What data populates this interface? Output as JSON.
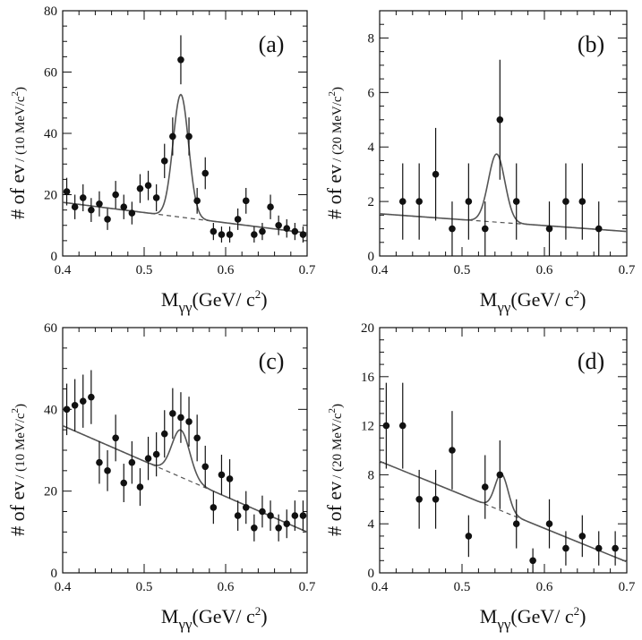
{
  "chart_data": [
    {
      "type": "scatter",
      "label": "(a)",
      "xlabel": "M",
      "xlabel_sub": "γγ",
      "xlabel_units": "(GeV/ c",
      "xlabel_exp": "2",
      "xlabel_close": ")",
      "ylabel": "# of ev",
      "ylabel_units": "/ (10 MeV/c",
      "ylabel_exp": "2",
      "ylabel_close": ")",
      "xlim": [
        0.4,
        0.7
      ],
      "ylim": [
        0,
        80
      ],
      "xticks": [
        0.4,
        0.5,
        0.6,
        0.7
      ],
      "xtick_labels": [
        "0.4",
        "0.5",
        "0.6",
        "0.7"
      ],
      "yticks": [
        0,
        20,
        40,
        60,
        80
      ],
      "ytick_labels": [
        "0",
        "20",
        "40",
        "60",
        "80"
      ],
      "x_minor_step": 0.02,
      "y_minor_step": 5,
      "points": [
        {
          "x": 0.405,
          "y": 21,
          "err": 4.5
        },
        {
          "x": 0.415,
          "y": 16,
          "err": 4.0
        },
        {
          "x": 0.425,
          "y": 19,
          "err": 4.4
        },
        {
          "x": 0.435,
          "y": 15,
          "err": 3.9
        },
        {
          "x": 0.445,
          "y": 17,
          "err": 4.1
        },
        {
          "x": 0.455,
          "y": 12,
          "err": 3.5
        },
        {
          "x": 0.465,
          "y": 20,
          "err": 4.5
        },
        {
          "x": 0.475,
          "y": 16,
          "err": 4.0
        },
        {
          "x": 0.485,
          "y": 14,
          "err": 3.7
        },
        {
          "x": 0.495,
          "y": 22,
          "err": 4.7
        },
        {
          "x": 0.505,
          "y": 23,
          "err": 4.8
        },
        {
          "x": 0.515,
          "y": 19,
          "err": 4.4
        },
        {
          "x": 0.525,
          "y": 31,
          "err": 5.6
        },
        {
          "x": 0.535,
          "y": 39,
          "err": 6.2
        },
        {
          "x": 0.545,
          "y": 64,
          "err": 8.0
        },
        {
          "x": 0.555,
          "y": 39,
          "err": 6.2
        },
        {
          "x": 0.565,
          "y": 18,
          "err": 4.2
        },
        {
          "x": 0.575,
          "y": 27,
          "err": 5.2
        },
        {
          "x": 0.585,
          "y": 8,
          "err": 2.8
        },
        {
          "x": 0.595,
          "y": 7,
          "err": 2.6
        },
        {
          "x": 0.605,
          "y": 7,
          "err": 2.6
        },
        {
          "x": 0.615,
          "y": 12,
          "err": 3.5
        },
        {
          "x": 0.625,
          "y": 18,
          "err": 4.2
        },
        {
          "x": 0.635,
          "y": 7,
          "err": 2.6
        },
        {
          "x": 0.645,
          "y": 8,
          "err": 2.8
        },
        {
          "x": 0.655,
          "y": 16,
          "err": 4.0
        },
        {
          "x": 0.665,
          "y": 10,
          "err": 3.2
        },
        {
          "x": 0.675,
          "y": 9,
          "err": 3.0
        },
        {
          "x": 0.685,
          "y": 8,
          "err": 2.8
        },
        {
          "x": 0.695,
          "y": 7,
          "err": 2.6
        }
      ],
      "background": {
        "y0": 17.5,
        "y1": 7.5
      },
      "peak": {
        "amplitude": 40,
        "mean": 0.545,
        "sigma": 0.0095
      }
    },
    {
      "type": "scatter",
      "label": "(b)",
      "xlabel": "M",
      "xlabel_sub": "γγ",
      "xlabel_units": "(GeV/ c",
      "xlabel_exp": "2",
      "xlabel_close": ")",
      "ylabel": "# of ev",
      "ylabel_units": "/ (20 MeV/c",
      "ylabel_exp": "2",
      "ylabel_close": ")",
      "xlim": [
        0.4,
        0.7
      ],
      "ylim": [
        0,
        9
      ],
      "xticks": [
        0.4,
        0.5,
        0.6,
        0.7
      ],
      "xtick_labels": [
        "0.4",
        "0.5",
        "0.6",
        "0.7"
      ],
      "yticks": [
        0,
        2,
        4,
        6,
        8
      ],
      "ytick_labels": [
        "0",
        "2",
        "4",
        "6",
        "8"
      ],
      "x_minor_step": 0.02,
      "y_minor_step": 0.5,
      "points": [
        {
          "x": 0.428,
          "y": 2,
          "err": 1.4
        },
        {
          "x": 0.448,
          "y": 2,
          "err": 1.4
        },
        {
          "x": 0.468,
          "y": 3,
          "err": 1.7
        },
        {
          "x": 0.488,
          "y": 1,
          "err": 1.0
        },
        {
          "x": 0.508,
          "y": 2,
          "err": 1.4
        },
        {
          "x": 0.528,
          "y": 1,
          "err": 1.0
        },
        {
          "x": 0.546,
          "y": 5,
          "err": 2.2
        },
        {
          "x": 0.566,
          "y": 2,
          "err": 1.4
        },
        {
          "x": 0.606,
          "y": 1,
          "err": 1.0
        },
        {
          "x": 0.626,
          "y": 2,
          "err": 1.4
        },
        {
          "x": 0.646,
          "y": 2,
          "err": 1.4
        },
        {
          "x": 0.666,
          "y": 1,
          "err": 1.0
        }
      ],
      "background": {
        "y0": 1.55,
        "y1": 0.9
      },
      "peak": {
        "amplitude": 2.5,
        "mean": 0.542,
        "sigma": 0.01
      }
    },
    {
      "type": "scatter",
      "label": "(c)",
      "xlabel": "M",
      "xlabel_sub": "γγ",
      "xlabel_units": "(GeV/ c",
      "xlabel_exp": "2",
      "xlabel_close": ")",
      "ylabel": "# of ev",
      "ylabel_units": "/ (10 MeV/c",
      "ylabel_exp": "2",
      "ylabel_close": ")",
      "xlim": [
        0.4,
        0.7
      ],
      "ylim": [
        0,
        60
      ],
      "xticks": [
        0.4,
        0.5,
        0.6,
        0.7
      ],
      "xtick_labels": [
        "0.4",
        "0.5",
        "0.6",
        "0.7"
      ],
      "yticks": [
        0,
        20,
        40,
        60
      ],
      "ytick_labels": [
        "0",
        "20",
        "40",
        "60"
      ],
      "x_minor_step": 0.02,
      "y_minor_step": 5,
      "points": [
        {
          "x": 0.405,
          "y": 40,
          "err": 6.3
        },
        {
          "x": 0.415,
          "y": 41,
          "err": 6.4
        },
        {
          "x": 0.425,
          "y": 42,
          "err": 6.5
        },
        {
          "x": 0.435,
          "y": 43,
          "err": 6.6
        },
        {
          "x": 0.445,
          "y": 27,
          "err": 5.2
        },
        {
          "x": 0.455,
          "y": 25,
          "err": 5.0
        },
        {
          "x": 0.465,
          "y": 33,
          "err": 5.7
        },
        {
          "x": 0.475,
          "y": 22,
          "err": 4.7
        },
        {
          "x": 0.485,
          "y": 27,
          "err": 5.2
        },
        {
          "x": 0.495,
          "y": 21,
          "err": 4.6
        },
        {
          "x": 0.505,
          "y": 28,
          "err": 5.3
        },
        {
          "x": 0.515,
          "y": 29,
          "err": 5.4
        },
        {
          "x": 0.525,
          "y": 34,
          "err": 5.8
        },
        {
          "x": 0.535,
          "y": 39,
          "err": 6.2
        },
        {
          "x": 0.545,
          "y": 38,
          "err": 6.2
        },
        {
          "x": 0.555,
          "y": 37,
          "err": 6.1
        },
        {
          "x": 0.565,
          "y": 33,
          "err": 5.7
        },
        {
          "x": 0.575,
          "y": 26,
          "err": 5.1
        },
        {
          "x": 0.585,
          "y": 16,
          "err": 4.0
        },
        {
          "x": 0.595,
          "y": 24,
          "err": 4.9
        },
        {
          "x": 0.605,
          "y": 23,
          "err": 4.8
        },
        {
          "x": 0.615,
          "y": 14,
          "err": 3.7
        },
        {
          "x": 0.625,
          "y": 16,
          "err": 4.0
        },
        {
          "x": 0.635,
          "y": 11,
          "err": 3.3
        },
        {
          "x": 0.645,
          "y": 15,
          "err": 3.9
        },
        {
          "x": 0.655,
          "y": 14,
          "err": 3.7
        },
        {
          "x": 0.665,
          "y": 11,
          "err": 3.3
        },
        {
          "x": 0.675,
          "y": 12,
          "err": 3.5
        },
        {
          "x": 0.685,
          "y": 14,
          "err": 3.7
        },
        {
          "x": 0.695,
          "y": 14,
          "err": 3.7
        }
      ],
      "background": {
        "y0": 36,
        "y1": 10
      },
      "peak": {
        "amplitude": 11.5,
        "mean": 0.545,
        "sigma": 0.011
      }
    },
    {
      "type": "scatter",
      "label": "(d)",
      "xlabel": "M",
      "xlabel_sub": "γγ",
      "xlabel_units": "(GeV/ c",
      "xlabel_exp": "2",
      "xlabel_close": ")",
      "ylabel": "# of ev",
      "ylabel_units": "/ (20 MeV/c",
      "ylabel_exp": "2",
      "ylabel_close": ")",
      "xlim": [
        0.4,
        0.7
      ],
      "ylim": [
        0,
        20
      ],
      "xticks": [
        0.4,
        0.5,
        0.6,
        0.7
      ],
      "xtick_labels": [
        "0.4",
        "0.5",
        "0.6",
        "0.7"
      ],
      "yticks": [
        0,
        4,
        8,
        12,
        16,
        20
      ],
      "ytick_labels": [
        "0",
        "4",
        "8",
        "12",
        "16",
        "20"
      ],
      "x_minor_step": 0.02,
      "y_minor_step": 1,
      "points": [
        {
          "x": 0.408,
          "y": 12,
          "err": 3.5
        },
        {
          "x": 0.428,
          "y": 12,
          "err": 3.5
        },
        {
          "x": 0.448,
          "y": 6,
          "err": 2.4
        },
        {
          "x": 0.468,
          "y": 6,
          "err": 2.4
        },
        {
          "x": 0.488,
          "y": 10,
          "err": 3.2
        },
        {
          "x": 0.508,
          "y": 3,
          "err": 1.7
        },
        {
          "x": 0.528,
          "y": 7,
          "err": 2.6
        },
        {
          "x": 0.546,
          "y": 8,
          "err": 2.8
        },
        {
          "x": 0.566,
          "y": 4,
          "err": 2.0
        },
        {
          "x": 0.586,
          "y": 1,
          "err": 1.0
        },
        {
          "x": 0.606,
          "y": 4,
          "err": 2.0
        },
        {
          "x": 0.626,
          "y": 2,
          "err": 1.4
        },
        {
          "x": 0.646,
          "y": 3,
          "err": 1.7
        },
        {
          "x": 0.666,
          "y": 2,
          "err": 1.4
        },
        {
          "x": 0.686,
          "y": 2,
          "err": 1.4
        }
      ],
      "background": {
        "y0": 9.1,
        "y1": 0.9
      },
      "peak": {
        "amplitude": 3.0,
        "mean": 0.548,
        "sigma": 0.008
      }
    }
  ]
}
